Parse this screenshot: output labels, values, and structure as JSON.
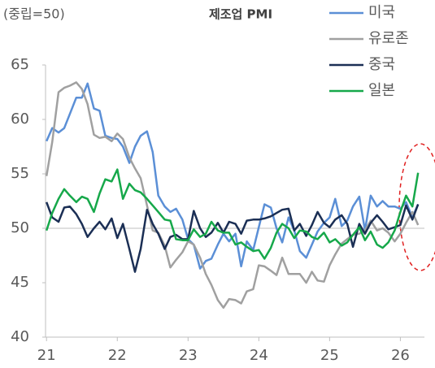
{
  "chart_data": {
    "type": "line",
    "title": "제조업 PMI",
    "subtitle": "(중립=50)",
    "x": [
      21,
      21.08,
      21.17,
      21.25,
      21.33,
      21.42,
      21.5,
      21.58,
      21.67,
      21.75,
      21.83,
      21.92,
      22,
      22.08,
      22.17,
      22.25,
      22.33,
      22.42,
      22.5,
      22.58,
      22.67,
      22.75,
      22.83,
      22.92,
      23,
      23.08,
      23.17,
      23.25,
      23.33,
      23.42,
      23.5,
      23.58,
      23.67,
      23.75,
      23.83,
      23.92,
      24,
      24.08,
      24.17,
      24.25,
      24.33,
      24.42,
      24.5,
      24.58,
      24.67,
      24.75,
      24.83,
      24.92,
      25,
      25.08,
      25.17,
      25.25,
      25.33,
      25.42,
      25.5,
      25.58,
      25.67,
      25.75,
      25.83,
      25.92,
      26,
      26.08,
      26.17,
      26.25
    ],
    "series": [
      {
        "name": "미국",
        "color": "#5b8fd6",
        "values": [
          58,
          59.2,
          58.8,
          59.2,
          60.5,
          62,
          62,
          63.3,
          61,
          60.8,
          58.5,
          58.3,
          58.2,
          57.5,
          56,
          57.5,
          58.5,
          58.9,
          57,
          53,
          52,
          51.5,
          51.8,
          50.8,
          49,
          48.5,
          46.3,
          47,
          47.2,
          48.5,
          49.5,
          48.8,
          49.5,
          46.5,
          48.8,
          48,
          50.1,
          52.2,
          51.9,
          50,
          48.7,
          51,
          49.8,
          47.9,
          47.3,
          48.5,
          49.7,
          50.5,
          51,
          52.7,
          50.2,
          50.7,
          52,
          52.9,
          49.8,
          53,
          52,
          52.5,
          52,
          52,
          51.8,
          52.4,
          51,
          52.2
        ]
      },
      {
        "name": "유로존",
        "color": "#a0a0a0",
        "values": [
          54.8,
          57.9,
          62.5,
          62.9,
          63.1,
          63.4,
          62.8,
          61.4,
          58.6,
          58.3,
          58.4,
          58,
          58.7,
          58.2,
          56.5,
          55.5,
          54.6,
          52.1,
          49.8,
          49.6,
          48.4,
          46.4,
          47.1,
          47.8,
          48.8,
          48.5,
          47.3,
          45.8,
          44.8,
          43.4,
          42.7,
          43.5,
          43.4,
          43.1,
          44.2,
          44.4,
          46.6,
          46.5,
          46.1,
          45.7,
          47.3,
          45.8,
          45.8,
          45.8,
          45,
          46,
          45.2,
          45.1,
          46.6,
          47.6,
          48.6,
          49,
          49.4,
          49.5,
          49.8,
          50.7,
          49.8,
          50,
          49.6,
          48.8,
          49.5,
          50.5,
          51.5,
          50.3
        ]
      },
      {
        "name": "중국",
        "color": "#1b2f55",
        "values": [
          52.4,
          51,
          50.6,
          51.9,
          52,
          51.3,
          50.4,
          49.2,
          50,
          50.6,
          49.9,
          50.9,
          49.1,
          50.4,
          48.1,
          46,
          48.1,
          51.7,
          50.4,
          49.5,
          48.1,
          49.2,
          49.4,
          49,
          49,
          51.6,
          50,
          49.2,
          49.6,
          50.5,
          49.6,
          50.6,
          50.4,
          49.5,
          50.7,
          50.8,
          50.8,
          50.9,
          51.1,
          51.4,
          51.7,
          51.8,
          49.8,
          50.4,
          49.3,
          50.3,
          51.5,
          50.5,
          50.1,
          50.8,
          51.2,
          50.4,
          48.3,
          50.4,
          49.5,
          50.5,
          51.2,
          50.6,
          49.9,
          50.1,
          50.3,
          52.1,
          50.8,
          52.2
        ]
      },
      {
        "name": "일본",
        "color": "#16a84a",
        "values": [
          49.8,
          51.4,
          52.7,
          53.6,
          53,
          52.4,
          52.9,
          52.7,
          51.5,
          53.2,
          54.5,
          54.3,
          55.4,
          52.7,
          54.1,
          53.5,
          53.3,
          52.7,
          52.1,
          51.5,
          50.8,
          50.7,
          49,
          48.9,
          48.9,
          49.9,
          49.2,
          49.5,
          50.6,
          49.8,
          49.6,
          49.6,
          48.5,
          48.7,
          48.3,
          47.9,
          48,
          47.2,
          48.2,
          49.6,
          50.4,
          50,
          49.1,
          49.8,
          49.7,
          49.2,
          49,
          49.6,
          48.7,
          49,
          48.4,
          48.7,
          49.4,
          50.1,
          48.9,
          49.7,
          48.5,
          48.2,
          48.7,
          49.8,
          51.5,
          53,
          52,
          55.1
        ]
      }
    ],
    "xlim": [
      20.94,
      26.34
    ],
    "xticks": [
      21,
      22,
      23,
      24,
      25,
      26
    ],
    "ylim": [
      40,
      65
    ],
    "yticks": [
      40,
      45,
      50,
      55,
      60,
      65
    ],
    "refline": 50,
    "grid": false,
    "legend": "top-right"
  }
}
